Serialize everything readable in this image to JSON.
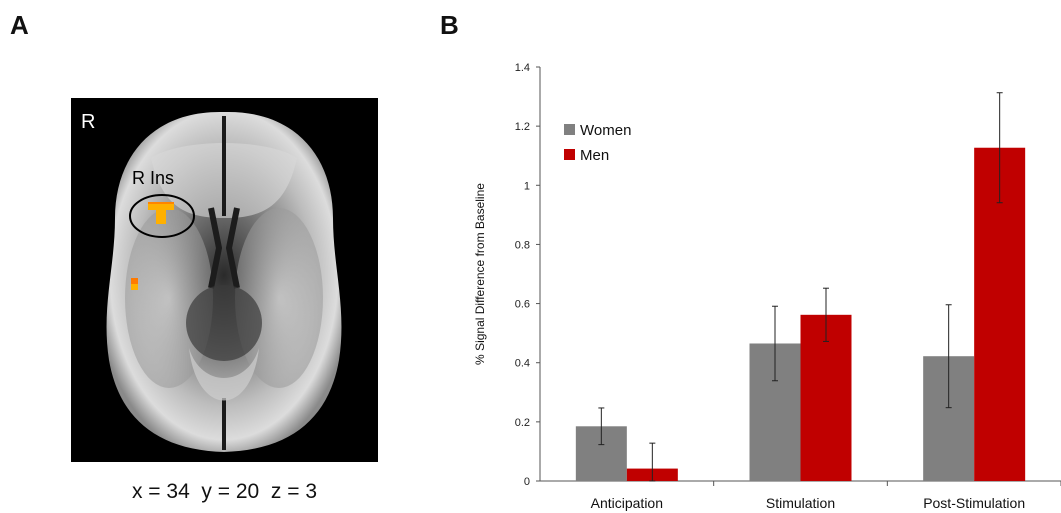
{
  "panels": {
    "a_label": "A",
    "b_label": "B"
  },
  "brain_image": {
    "hemisphere_label": "R",
    "roi_label": "R Ins",
    "coordinates": "x = 34  y = 20  z = 3",
    "colors": {
      "background": "#000000",
      "activation": "#ffb000",
      "activation_edge": "#ff6600",
      "roi_outline": "#000000"
    }
  },
  "chart_data": {
    "type": "bar",
    "categories": [
      "Anticipation",
      "Stimulation",
      "Post-Stimulation"
    ],
    "series": [
      {
        "name": "Women",
        "color": "#808080",
        "values": [
          0.185,
          0.465,
          0.422
        ],
        "error": [
          0.062,
          0.126,
          0.174
        ]
      },
      {
        "name": "Men",
        "color": "#c00000",
        "values": [
          0.042,
          0.562,
          1.127
        ],
        "error": [
          0.086,
          0.09,
          0.186
        ]
      }
    ],
    "ylabel": "% Signal Difference from Baseline",
    "xlabel": "",
    "ylim": [
      0,
      1.4
    ],
    "yticks": [
      0,
      0.2,
      0.4,
      0.6,
      0.8,
      1,
      1.2,
      1.4
    ],
    "ytick_labels": [
      "0",
      "0.2",
      "0.4",
      "0.6",
      "0.8",
      "1",
      "1.2",
      "1.4"
    ],
    "grid": false,
    "legend_position": "top-left"
  }
}
